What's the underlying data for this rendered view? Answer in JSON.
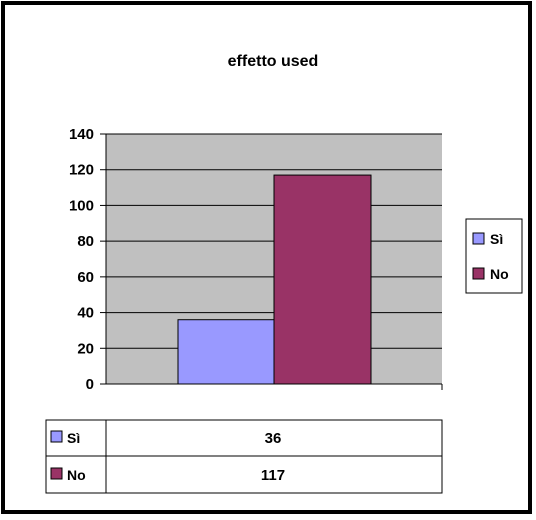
{
  "chart_data": {
    "type": "bar",
    "title": "effetto used",
    "categories": [
      ""
    ],
    "series": [
      {
        "name": "Sì",
        "values": [
          36
        ],
        "color": "#9999ff"
      },
      {
        "name": "No",
        "values": [
          117
        ],
        "color": "#993366"
      }
    ],
    "ylim": [
      0,
      140
    ],
    "yticks": [
      "0",
      "20",
      "40",
      "60",
      "80",
      "100",
      "120",
      "140"
    ],
    "grid": true,
    "plot_background": "#c0c0c0",
    "legend": "right",
    "data_table": [
      {
        "label": "Sì",
        "value": "36"
      },
      {
        "label": "No",
        "value": "117"
      }
    ]
  }
}
